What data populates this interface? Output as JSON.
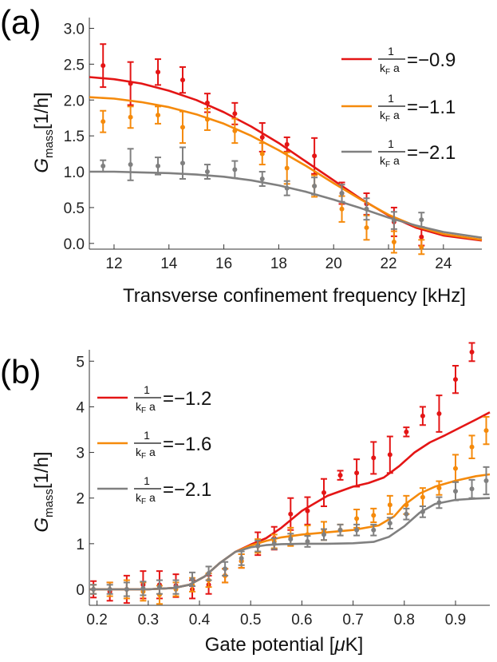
{
  "chart_data": [
    {
      "type": "scatter",
      "panel_label": "(a)",
      "xlabel": "Transverse confinement frequency [kHz]",
      "ylabel_main": "G",
      "ylabel_sub": "mass",
      "ylabel_unit": "[1/h]",
      "xlim": [
        11.1,
        25.4
      ],
      "ylim": [
        -0.08,
        3.15
      ],
      "xticks": [
        "12",
        "14",
        "16",
        "18",
        "20",
        "22",
        "24"
      ],
      "yticks": [
        "0.0",
        "0.5",
        "1.0",
        "1.5",
        "2.0",
        "2.5",
        "3.0"
      ],
      "legend_position": "top-right",
      "series": [
        {
          "legend_param": "1/(k_F a)",
          "legend_num": "1",
          "legend_den": "k",
          "legend_den_sub": "F",
          "legend_den_tail": " a",
          "legend_value": "=−0.9",
          "color": "#e41515",
          "x": [
            11.6,
            12.6,
            13.6,
            14.5,
            15.4,
            16.4,
            17.4,
            18.3,
            19.3,
            20.3,
            21.2,
            22.2,
            23.2
          ],
          "y": [
            2.48,
            2.23,
            2.39,
            2.28,
            1.96,
            1.81,
            1.48,
            1.38,
            1.22,
            0.7,
            0.55,
            0.3,
            0.09
          ],
          "err": [
            0.3,
            0.3,
            0.18,
            0.18,
            0.13,
            0.15,
            0.2,
            0.1,
            0.25,
            0.15,
            0.15,
            0.2,
            0.12
          ],
          "curve_x": [
            11.1,
            12,
            13,
            14,
            15,
            16,
            17,
            18,
            19,
            20,
            21,
            22,
            23,
            24,
            25.4
          ],
          "curve_y": [
            2.32,
            2.29,
            2.23,
            2.13,
            2.0,
            1.83,
            1.63,
            1.4,
            1.14,
            0.88,
            0.62,
            0.39,
            0.22,
            0.11,
            0.04
          ]
        },
        {
          "legend_param": "1/(k_F a)",
          "legend_num": "1",
          "legend_den": "k",
          "legend_den_sub": "F",
          "legend_den_tail": " a",
          "legend_value": "=−1.1",
          "color": "#f58a0b",
          "x": [
            11.6,
            12.6,
            13.6,
            14.5,
            15.4,
            16.4,
            17.4,
            18.3,
            19.3,
            20.3,
            21.2,
            22.2,
            23.2
          ],
          "y": [
            1.7,
            1.76,
            1.79,
            1.62,
            1.73,
            1.57,
            1.25,
            1.05,
            0.8,
            0.48,
            0.22,
            0.02,
            -0.05
          ],
          "err": [
            0.15,
            0.15,
            0.12,
            0.22,
            0.15,
            0.17,
            0.15,
            0.22,
            0.15,
            0.18,
            0.17,
            0.15,
            0.1
          ],
          "curve_x": [
            11.1,
            12,
            13,
            14,
            15,
            16,
            17,
            18,
            19,
            20,
            21,
            22,
            23,
            24,
            25.4
          ],
          "curve_y": [
            2.04,
            2.02,
            1.97,
            1.9,
            1.8,
            1.67,
            1.5,
            1.3,
            1.08,
            0.84,
            0.61,
            0.4,
            0.24,
            0.13,
            0.05
          ]
        },
        {
          "legend_param": "1/(k_F a)",
          "legend_num": "1",
          "legend_den": "k",
          "legend_den_sub": "F",
          "legend_den_tail": " a",
          "legend_value": "=−2.1",
          "color": "#808080",
          "x": [
            11.6,
            12.6,
            13.6,
            14.5,
            15.4,
            16.4,
            17.4,
            18.3,
            19.3,
            20.3,
            21.2,
            22.2,
            23.2
          ],
          "y": [
            1.08,
            1.1,
            1.08,
            1.12,
            1.0,
            1.03,
            0.9,
            0.77,
            0.8,
            0.7,
            0.48,
            0.32,
            0.33
          ],
          "err": [
            0.08,
            0.22,
            0.12,
            0.22,
            0.1,
            0.12,
            0.1,
            0.1,
            0.12,
            0.12,
            0.15,
            0.12,
            0.1
          ],
          "curve_x": [
            11.1,
            12,
            13,
            14,
            15,
            16,
            17,
            18,
            19,
            20,
            21,
            22,
            23,
            24,
            25.4
          ],
          "curve_y": [
            1.0,
            1.0,
            0.99,
            0.98,
            0.96,
            0.93,
            0.88,
            0.81,
            0.72,
            0.61,
            0.49,
            0.36,
            0.25,
            0.16,
            0.08
          ]
        }
      ]
    },
    {
      "type": "scatter",
      "panel_label": "(b)",
      "xlabel_pre": "Gate potential [",
      "xlabel_mu": "μ",
      "xlabel_post": "K]",
      "ylabel_main": "G",
      "ylabel_sub": "mass",
      "ylabel_unit": "[1/h]",
      "xlim": [
        0.185,
        0.967
      ],
      "ylim": [
        -0.35,
        5.25
      ],
      "xticks": [
        "0.2",
        "0.3",
        "0.4",
        "0.5",
        "0.6",
        "0.7",
        "0.8",
        "0.9"
      ],
      "yticks": [
        "0",
        "1",
        "2",
        "3",
        "4",
        "5"
      ],
      "legend_position": "top-left",
      "series": [
        {
          "legend_param": "1/(k_F a)",
          "legend_num": "1",
          "legend_den": "k",
          "legend_den_sub": "F",
          "legend_den_tail": " a",
          "legend_value": "=−1.2",
          "color": "#e41515",
          "x": [
            0.193,
            0.225,
            0.258,
            0.29,
            0.322,
            0.354,
            0.386,
            0.418,
            0.45,
            0.482,
            0.514,
            0.546,
            0.578,
            0.611,
            0.643,
            0.675,
            0.707,
            0.74,
            0.772,
            0.804,
            0.836,
            0.868,
            0.9,
            0.932
          ],
          "y": [
            0.0,
            -0.05,
            0.0,
            0.1,
            0.1,
            0.08,
            0.0,
            0.1,
            0.3,
            0.62,
            1.0,
            1.12,
            1.65,
            1.72,
            2.12,
            2.5,
            2.55,
            2.88,
            2.95,
            3.45,
            3.8,
            3.85,
            4.6,
            5.2
          ],
          "err": [
            0.18,
            0.2,
            0.3,
            0.3,
            0.3,
            0.25,
            0.2,
            0.2,
            0.15,
            0.15,
            0.25,
            0.25,
            0.35,
            0.3,
            0.3,
            0.1,
            0.3,
            0.35,
            0.4,
            0.1,
            0.2,
            0.4,
            0.3,
            0.2
          ],
          "curve_x": [
            0.185,
            0.25,
            0.3,
            0.35,
            0.38,
            0.41,
            0.44,
            0.47,
            0.5,
            0.53,
            0.56,
            0.6,
            0.65,
            0.7,
            0.73,
            0.76,
            0.79,
            0.82,
            0.85,
            0.88,
            0.91,
            0.94,
            0.967
          ],
          "curve_y": [
            0.0,
            0.0,
            0.0,
            0.03,
            0.1,
            0.28,
            0.58,
            0.82,
            0.98,
            1.12,
            1.35,
            1.72,
            2.05,
            2.25,
            2.33,
            2.45,
            2.7,
            3.0,
            3.22,
            3.38,
            3.55,
            3.72,
            3.88
          ]
        },
        {
          "legend_param": "1/(k_F a)",
          "legend_num": "1",
          "legend_den": "k",
          "legend_den_sub": "F",
          "legend_den_tail": " a",
          "legend_value": "=−1.6",
          "color": "#f58a0b",
          "x": [
            0.193,
            0.225,
            0.258,
            0.29,
            0.322,
            0.354,
            0.386,
            0.418,
            0.45,
            0.482,
            0.514,
            0.546,
            0.578,
            0.611,
            0.643,
            0.675,
            0.707,
            0.74,
            0.772,
            0.804,
            0.836,
            0.868,
            0.9,
            0.932,
            0.96
          ],
          "y": [
            0.0,
            0.0,
            0.0,
            -0.05,
            -0.12,
            0.0,
            0.1,
            0.2,
            0.3,
            0.62,
            0.95,
            1.05,
            1.15,
            1.2,
            1.28,
            1.3,
            1.55,
            1.62,
            1.85,
            1.85,
            2.02,
            2.22,
            2.65,
            3.12,
            3.48
          ],
          "err": [
            0.1,
            0.15,
            0.2,
            0.2,
            0.2,
            0.15,
            0.15,
            0.15,
            0.15,
            0.15,
            0.15,
            0.15,
            0.2,
            0.2,
            0.2,
            0.12,
            0.2,
            0.15,
            0.2,
            0.2,
            0.2,
            0.15,
            0.3,
            0.25,
            0.3
          ],
          "curve_x": [
            0.185,
            0.25,
            0.3,
            0.35,
            0.38,
            0.41,
            0.44,
            0.47,
            0.5,
            0.53,
            0.56,
            0.6,
            0.65,
            0.7,
            0.75,
            0.78,
            0.8,
            0.83,
            0.86,
            0.9,
            0.94,
            0.967
          ],
          "curve_y": [
            0.0,
            0.0,
            0.0,
            0.03,
            0.1,
            0.28,
            0.58,
            0.82,
            0.96,
            1.06,
            1.14,
            1.2,
            1.25,
            1.3,
            1.4,
            1.6,
            1.85,
            2.1,
            2.25,
            2.38,
            2.48,
            2.52
          ]
        },
        {
          "legend_param": "1/(k_F a)",
          "legend_num": "1",
          "legend_den": "k",
          "legend_den_sub": "F",
          "legend_den_tail": " a",
          "legend_value": "=−2.1",
          "color": "#808080",
          "x": [
            0.193,
            0.225,
            0.258,
            0.29,
            0.322,
            0.354,
            0.386,
            0.418,
            0.45,
            0.482,
            0.514,
            0.546,
            0.578,
            0.611,
            0.643,
            0.675,
            0.707,
            0.74,
            0.772,
            0.804,
            0.836,
            0.868,
            0.9,
            0.932,
            0.96
          ],
          "y": [
            0.0,
            0.0,
            0.0,
            0.02,
            0.05,
            0.05,
            0.22,
            0.35,
            0.45,
            0.68,
            0.95,
            1.0,
            1.1,
            1.05,
            1.2,
            1.3,
            1.3,
            1.3,
            1.45,
            1.65,
            1.7,
            1.9,
            2.15,
            2.2,
            2.38
          ],
          "err": [
            0.1,
            0.1,
            0.15,
            0.15,
            0.15,
            0.15,
            0.15,
            0.15,
            0.15,
            0.15,
            0.12,
            0.12,
            0.12,
            0.12,
            0.12,
            0.12,
            0.12,
            0.12,
            0.12,
            0.12,
            0.12,
            0.12,
            0.2,
            0.2,
            0.3
          ],
          "curve_x": [
            0.185,
            0.25,
            0.3,
            0.35,
            0.38,
            0.41,
            0.44,
            0.47,
            0.5,
            0.53,
            0.56,
            0.6,
            0.65,
            0.7,
            0.74,
            0.77,
            0.8,
            0.83,
            0.86,
            0.9,
            0.94,
            0.967
          ],
          "curve_y": [
            0.0,
            0.0,
            0.0,
            0.03,
            0.1,
            0.28,
            0.58,
            0.82,
            0.92,
            0.97,
            0.99,
            1.0,
            1.0,
            1.01,
            1.04,
            1.15,
            1.38,
            1.68,
            1.87,
            1.96,
            1.99,
            2.0
          ]
        }
      ]
    }
  ]
}
